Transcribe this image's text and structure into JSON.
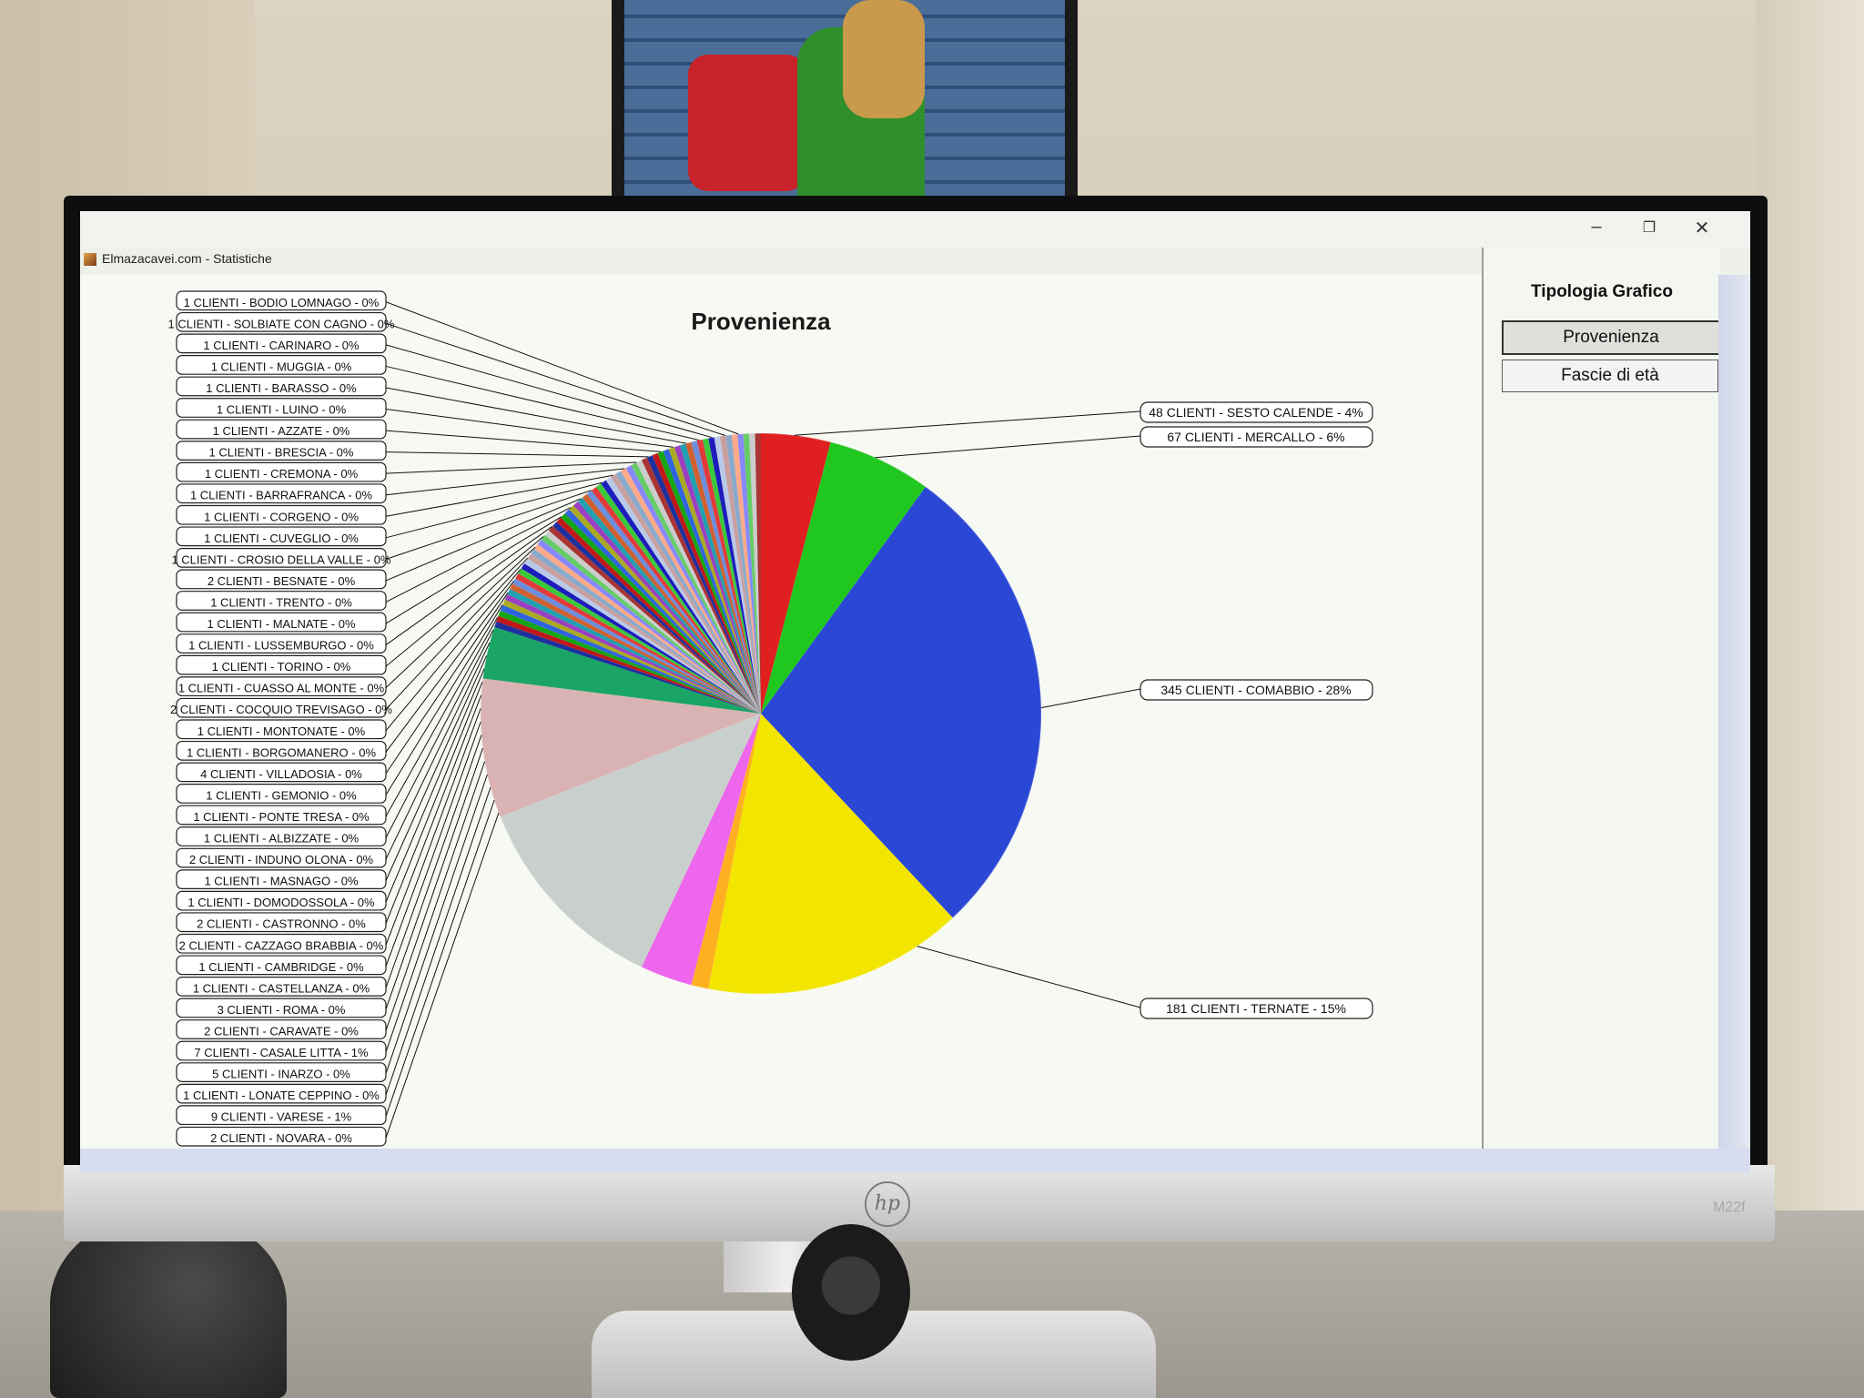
{
  "window": {
    "title": "Elmazacavei.com - Statistiche",
    "controls": {
      "minimize": "–",
      "maximize": "❐",
      "close": "✕"
    }
  },
  "chart_data": {
    "type": "pie",
    "title": "Provenienza",
    "labels": [
      "1 CLIENTI - BODIO LOMNAGO - 0%",
      "1 CLIENTI - SOLBIATE CON CAGNO - 0%",
      "1 CLIENTI - CARINARO - 0%",
      "1 CLIENTI - MUGGIA - 0%",
      "1 CLIENTI - BARASSO - 0%",
      "1 CLIENTI - LUINO - 0%",
      "1 CLIENTI - AZZATE - 0%",
      "1 CLIENTI - BRESCIA - 0%",
      "1 CLIENTI - CREMONA - 0%",
      "1 CLIENTI - BARRAFRANCA - 0%",
      "1 CLIENTI - CORGENO - 0%",
      "1 CLIENTI - CUVEGLIO - 0%",
      "1 CLIENTI - CROSIO DELLA VALLE - 0%",
      "2 CLIENTI - BESNATE - 0%",
      "1 CLIENTI - TRENTO - 0%",
      "1 CLIENTI - MALNATE - 0%",
      "1 CLIENTI - LUSSEMBURGO - 0%",
      "1 CLIENTI - TORINO - 0%",
      "1 CLIENTI - CUASSO AL MONTE - 0%",
      "2 CLIENTI - COCQUIO TREVISAGO - 0%",
      "1 CLIENTI - MONTONATE - 0%",
      "1 CLIENTI - BORGOMANERO - 0%",
      "4 CLIENTI - VILLADOSIA - 0%",
      "1 CLIENTI - GEMONIO - 0%",
      "1 CLIENTI - PONTE TRESA - 0%",
      "1 CLIENTI - ALBIZZATE - 0%",
      "2 CLIENTI - INDUNO OLONA - 0%",
      "1 CLIENTI - MASNAGO - 0%",
      "1 CLIENTI - DOMODOSSOLA - 0%",
      "2 CLIENTI - CASTRONNO - 0%",
      "2 CLIENTI - CAZZAGO BRABBIA - 0%",
      "1 CLIENTI - CAMBRIDGE - 0%",
      "1 CLIENTI - CASTELLANZA - 0%",
      "3 CLIENTI - ROMA - 0%",
      "2 CLIENTI - CARAVATE - 0%",
      "7 CLIENTI - CASALE LITTA - 1%",
      "5 CLIENTI - INARZO - 0%",
      "1 CLIENTI - LONATE CEPPINO - 0%",
      "9 CLIENTI - VARESE - 1%",
      "2 CLIENTI - NOVARA - 0%"
    ],
    "right_labels": [
      "48 CLIENTI - SESTO CALENDE - 4%",
      "67 CLIENTI - MERCALLO - 6%",
      "345 CLIENTI - COMABBIO - 28%",
      "181 CLIENTI - TERNATE - 15%"
    ],
    "major_slices": [
      {
        "name": "SESTO CALENDE",
        "clients": 48,
        "percent": 4,
        "color": "#e02020"
      },
      {
        "name": "MERCALLO",
        "clients": 67,
        "percent": 6,
        "color": "#1fc71f"
      },
      {
        "name": "COMABBIO",
        "clients": 345,
        "percent": 28,
        "color": "#2b47d6"
      },
      {
        "name": "TERNATE",
        "clients": 181,
        "percent": 15,
        "color": "#f2e600"
      },
      {
        "name": "",
        "clients": null,
        "percent": 1,
        "color": "#ffb020"
      },
      {
        "name": "",
        "clients": null,
        "percent": 3,
        "color": "#ee66ee"
      },
      {
        "name": "",
        "clients": null,
        "percent": 12,
        "color": "#c9cfcc"
      },
      {
        "name": "",
        "clients": null,
        "percent": 8,
        "color": "#d9b3b3"
      },
      {
        "name": "",
        "clients": null,
        "percent": 3,
        "color": "#1aa566"
      },
      {
        "name": "",
        "clients": null,
        "percent": 20,
        "color": "#mixed"
      }
    ],
    "many_small_slice_colors": [
      "#1e2f9e",
      "#c01818",
      "#16a516",
      "#2f63e0",
      "#aaaa22",
      "#9a40c0",
      "#20a0b0",
      "#d06030",
      "#6b8fdc",
      "#e23a3a",
      "#3bc83b",
      "#1d1dbb",
      "#b9c9e9",
      "#c8a0a0",
      "#8ac",
      "#fa8",
      "#88f",
      "#6c6",
      "#ccc",
      "#a33"
    ],
    "legend": "none"
  },
  "side_panel": {
    "title": "Tipologia Grafico",
    "buttons": [
      "Provenienza",
      "Fascie di età"
    ],
    "selected": "Provenienza"
  },
  "monitor": {
    "brand": "hp",
    "model": "M22f"
  }
}
